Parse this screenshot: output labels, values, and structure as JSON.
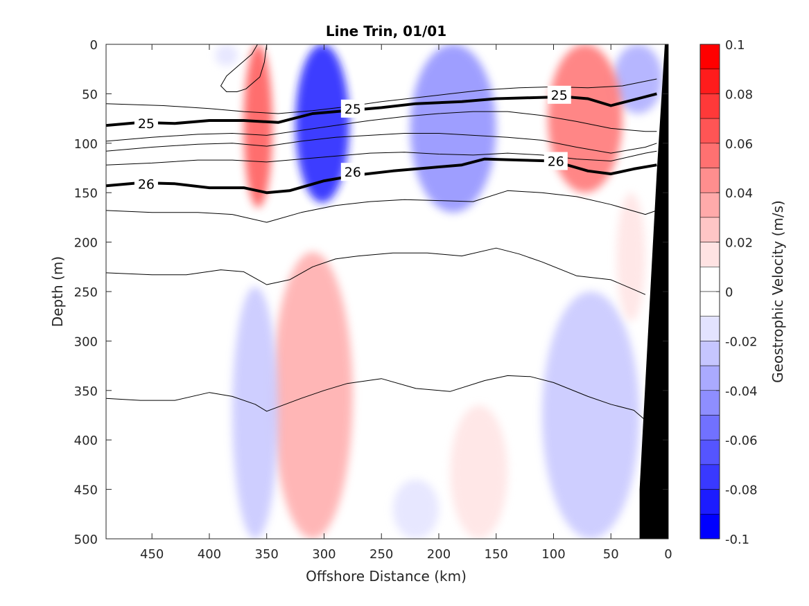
{
  "chart_data": {
    "type": "heatmap",
    "title": "Line Trin, 01/01",
    "xlabel": "Offshore Distance (km)",
    "ylabel": "Depth (m)",
    "colorbar_label": "Geostrophic Velocity (m/s)",
    "xlim": [
      490,
      0
    ],
    "ylim": [
      0,
      500
    ],
    "x_ticks": [
      450,
      400,
      350,
      300,
      250,
      200,
      150,
      100,
      50,
      0
    ],
    "y_ticks": [
      0,
      50,
      100,
      150,
      200,
      250,
      300,
      350,
      400,
      450,
      500
    ],
    "colorbar": {
      "range": [
        -0.1,
        0.1
      ],
      "ticks": [
        0.1,
        0.08,
        0.06,
        0.04,
        0.02,
        0,
        -0.02,
        -0.04,
        -0.06,
        -0.08,
        -0.1
      ],
      "tick_labels": [
        "0.1",
        "0.08",
        "0.06",
        "0.04",
        "0.02",
        "0",
        "-0.02",
        "-0.04",
        "-0.06",
        "-0.08",
        "-0.1"
      ],
      "levels": [
        {
          "from": 0.09,
          "to": 0.1,
          "color": "#ff0000"
        },
        {
          "from": 0.08,
          "to": 0.09,
          "color": "#ff1c1c"
        },
        {
          "from": 0.07,
          "to": 0.08,
          "color": "#ff3939"
        },
        {
          "from": 0.06,
          "to": 0.07,
          "color": "#ff5555"
        },
        {
          "from": 0.05,
          "to": 0.06,
          "color": "#ff7171"
        },
        {
          "from": 0.04,
          "to": 0.05,
          "color": "#ff8e8e"
        },
        {
          "from": 0.03,
          "to": 0.04,
          "color": "#ffaaaa"
        },
        {
          "from": 0.02,
          "to": 0.03,
          "color": "#ffc6c6"
        },
        {
          "from": 0.01,
          "to": 0.02,
          "color": "#ffe3e3"
        },
        {
          "from": 0.0,
          "to": 0.01,
          "color": "#ffffff"
        },
        {
          "from": -0.01,
          "to": 0.0,
          "color": "#ffffff"
        },
        {
          "from": -0.02,
          "to": -0.01,
          "color": "#e3e3ff"
        },
        {
          "from": -0.03,
          "to": -0.02,
          "color": "#c6c6ff"
        },
        {
          "from": -0.04,
          "to": -0.03,
          "color": "#aaaaff"
        },
        {
          "from": -0.05,
          "to": -0.04,
          "color": "#8e8eff"
        },
        {
          "from": -0.06,
          "to": -0.05,
          "color": "#7171ff"
        },
        {
          "from": -0.07,
          "to": -0.06,
          "color": "#5555ff"
        },
        {
          "from": -0.08,
          "to": -0.07,
          "color": "#3939ff"
        },
        {
          "from": -0.09,
          "to": -0.08,
          "color": "#1c1cff"
        },
        {
          "from": -0.1,
          "to": -0.09,
          "color": "#0000ff"
        }
      ]
    },
    "velocity_features": [
      {
        "x": [
          325,
          278
        ],
        "depth": [
          0,
          160
        ],
        "peak": -0.09,
        "color": "#1c1cff"
      },
      {
        "x": [
          225,
          150
        ],
        "depth": [
          0,
          170
        ],
        "peak": -0.045,
        "color": "#8e8eff"
      },
      {
        "x": [
          395,
          375
        ],
        "depth": [
          0,
          22
        ],
        "peak": -0.015,
        "color": "#e3e3ff"
      },
      {
        "x": [
          48,
          5
        ],
        "depth": [
          0,
          70
        ],
        "peak": -0.03,
        "color": "#aaaaff"
      },
      {
        "x": [
          370,
          345
        ],
        "depth": [
          0,
          165
        ],
        "peak": 0.06,
        "color": "#ff5555"
      },
      {
        "x": [
          105,
          40
        ],
        "depth": [
          0,
          150
        ],
        "peak": 0.055,
        "color": "#ff7171"
      },
      {
        "x": [
          345,
          275
        ],
        "depth": [
          210,
          500
        ],
        "peak": 0.03,
        "color": "#ffaaaa"
      },
      {
        "x": [
          190,
          140
        ],
        "depth": [
          365,
          500
        ],
        "peak": 0.015,
        "color": "#ffe3e3"
      },
      {
        "x": [
          380,
          340
        ],
        "depth": [
          245,
          500
        ],
        "peak": -0.02,
        "color": "#c6c6ff"
      },
      {
        "x": [
          110,
          25
        ],
        "depth": [
          250,
          500
        ],
        "peak": -0.025,
        "color": "#c6c6ff"
      },
      {
        "x": [
          240,
          200
        ],
        "depth": [
          440,
          500
        ],
        "peak": -0.015,
        "color": "#e3e3ff"
      },
      {
        "x": [
          45,
          20
        ],
        "depth": [
          150,
          280
        ],
        "peak": 0.015,
        "color": "#ffe3e3"
      }
    ],
    "density_contours": [
      {
        "label": "25",
        "bold": true,
        "x": [
          490,
          460,
          430,
          400,
          370,
          340,
          310,
          280,
          250,
          220,
          180,
          150,
          120,
          90,
          70,
          50,
          30,
          10
        ],
        "depth": [
          82,
          79,
          80,
          77,
          77,
          79,
          70,
          67,
          64,
          60,
          58,
          55,
          54,
          53,
          55,
          62,
          56,
          50
        ]
      },
      {
        "label": "26",
        "bold": true,
        "x": [
          490,
          460,
          430,
          400,
          370,
          350,
          330,
          300,
          270,
          240,
          210,
          180,
          160,
          130,
          100,
          70,
          50,
          30,
          10
        ],
        "depth": [
          143,
          140,
          141,
          145,
          145,
          150,
          148,
          138,
          132,
          128,
          125,
          122,
          116,
          117,
          118,
          128,
          131,
          126,
          122
        ]
      },
      {
        "label": "",
        "bold": false,
        "x": [
          490,
          440,
          400,
          370,
          340,
          310,
          280,
          250,
          220,
          190,
          160,
          130,
          100,
          70,
          40,
          10
        ],
        "depth": [
          60,
          62,
          65,
          68,
          70,
          67,
          63,
          58,
          54,
          50,
          46,
          44,
          43,
          44,
          42,
          35
        ]
      },
      {
        "label": "",
        "bold": false,
        "x": [
          490,
          450,
          410,
          380,
          350,
          320,
          290,
          260,
          230,
          200,
          170,
          140,
          110,
          80,
          50,
          20,
          10
        ],
        "depth": [
          98,
          94,
          91,
          90,
          92,
          87,
          82,
          77,
          73,
          70,
          68,
          68,
          72,
          78,
          85,
          88,
          88
        ]
      },
      {
        "label": "",
        "bold": false,
        "x": [
          490,
          450,
          410,
          380,
          350,
          320,
          290,
          260,
          230,
          200,
          170,
          140,
          110,
          80,
          50,
          20,
          10
        ],
        "depth": [
          108,
          104,
          101,
          100,
          103,
          98,
          94,
          92,
          90,
          90,
          92,
          94,
          97,
          104,
          110,
          104,
          100
        ]
      },
      {
        "label": "",
        "bold": false,
        "x": [
          490,
          450,
          410,
          380,
          350,
          320,
          290,
          260,
          230,
          200,
          170,
          140,
          110,
          80,
          50,
          20,
          10
        ],
        "depth": [
          122,
          120,
          117,
          117,
          119,
          116,
          113,
          110,
          109,
          111,
          112,
          110,
          112,
          116,
          118,
          110,
          108
        ]
      },
      {
        "label": "",
        "bold": false,
        "x": [
          490,
          450,
          410,
          380,
          350,
          320,
          290,
          260,
          230,
          200,
          170,
          140,
          110,
          80,
          50,
          20,
          10
        ],
        "depth": [
          168,
          170,
          170,
          172,
          180,
          170,
          163,
          159,
          157,
          158,
          159,
          148,
          150,
          154,
          162,
          172,
          168
        ]
      },
      {
        "label": "",
        "bold": false,
        "x": [
          490,
          450,
          420,
          390,
          370,
          350,
          330,
          310,
          290,
          270,
          240,
          210,
          180,
          150,
          130,
          110,
          80,
          50,
          30,
          20
        ],
        "depth": [
          231,
          233,
          233,
          228,
          230,
          243,
          238,
          225,
          217,
          214,
          211,
          211,
          214,
          206,
          212,
          220,
          234,
          238,
          248,
          253
        ]
      },
      {
        "label": "",
        "bold": false,
        "x": [
          490,
          460,
          430,
          400,
          380,
          360,
          350,
          320,
          300,
          280,
          250,
          220,
          190,
          160,
          140,
          120,
          100,
          70,
          50,
          30,
          20
        ],
        "depth": [
          358,
          360,
          360,
          352,
          356,
          364,
          371,
          358,
          350,
          343,
          338,
          348,
          351,
          340,
          335,
          336,
          342,
          356,
          364,
          370,
          380
        ]
      },
      {
        "label": "",
        "bold": false,
        "x": [
          358,
          363,
          375,
          385,
          390,
          385,
          376,
          368,
          356,
          352,
          350
        ],
        "depth": [
          0,
          10,
          22,
          32,
          42,
          48,
          48,
          45,
          33,
          18,
          0
        ]
      }
    ],
    "contour_labels": [
      {
        "text": "25",
        "x": 455,
        "depth": 80
      },
      {
        "text": "25",
        "x": 275,
        "depth": 65
      },
      {
        "text": "25",
        "x": 95,
        "depth": 51
      },
      {
        "text": "26",
        "x": 455,
        "depth": 141
      },
      {
        "text": "26",
        "x": 275,
        "depth": 129
      },
      {
        "text": "26",
        "x": 98,
        "depth": 118
      }
    ],
    "topography": {
      "x": [
        0,
        3,
        10,
        18,
        25,
        25,
        0
      ],
      "depth": [
        0,
        0,
        130,
        300,
        450,
        500,
        500
      ],
      "color": "#000000"
    }
  }
}
